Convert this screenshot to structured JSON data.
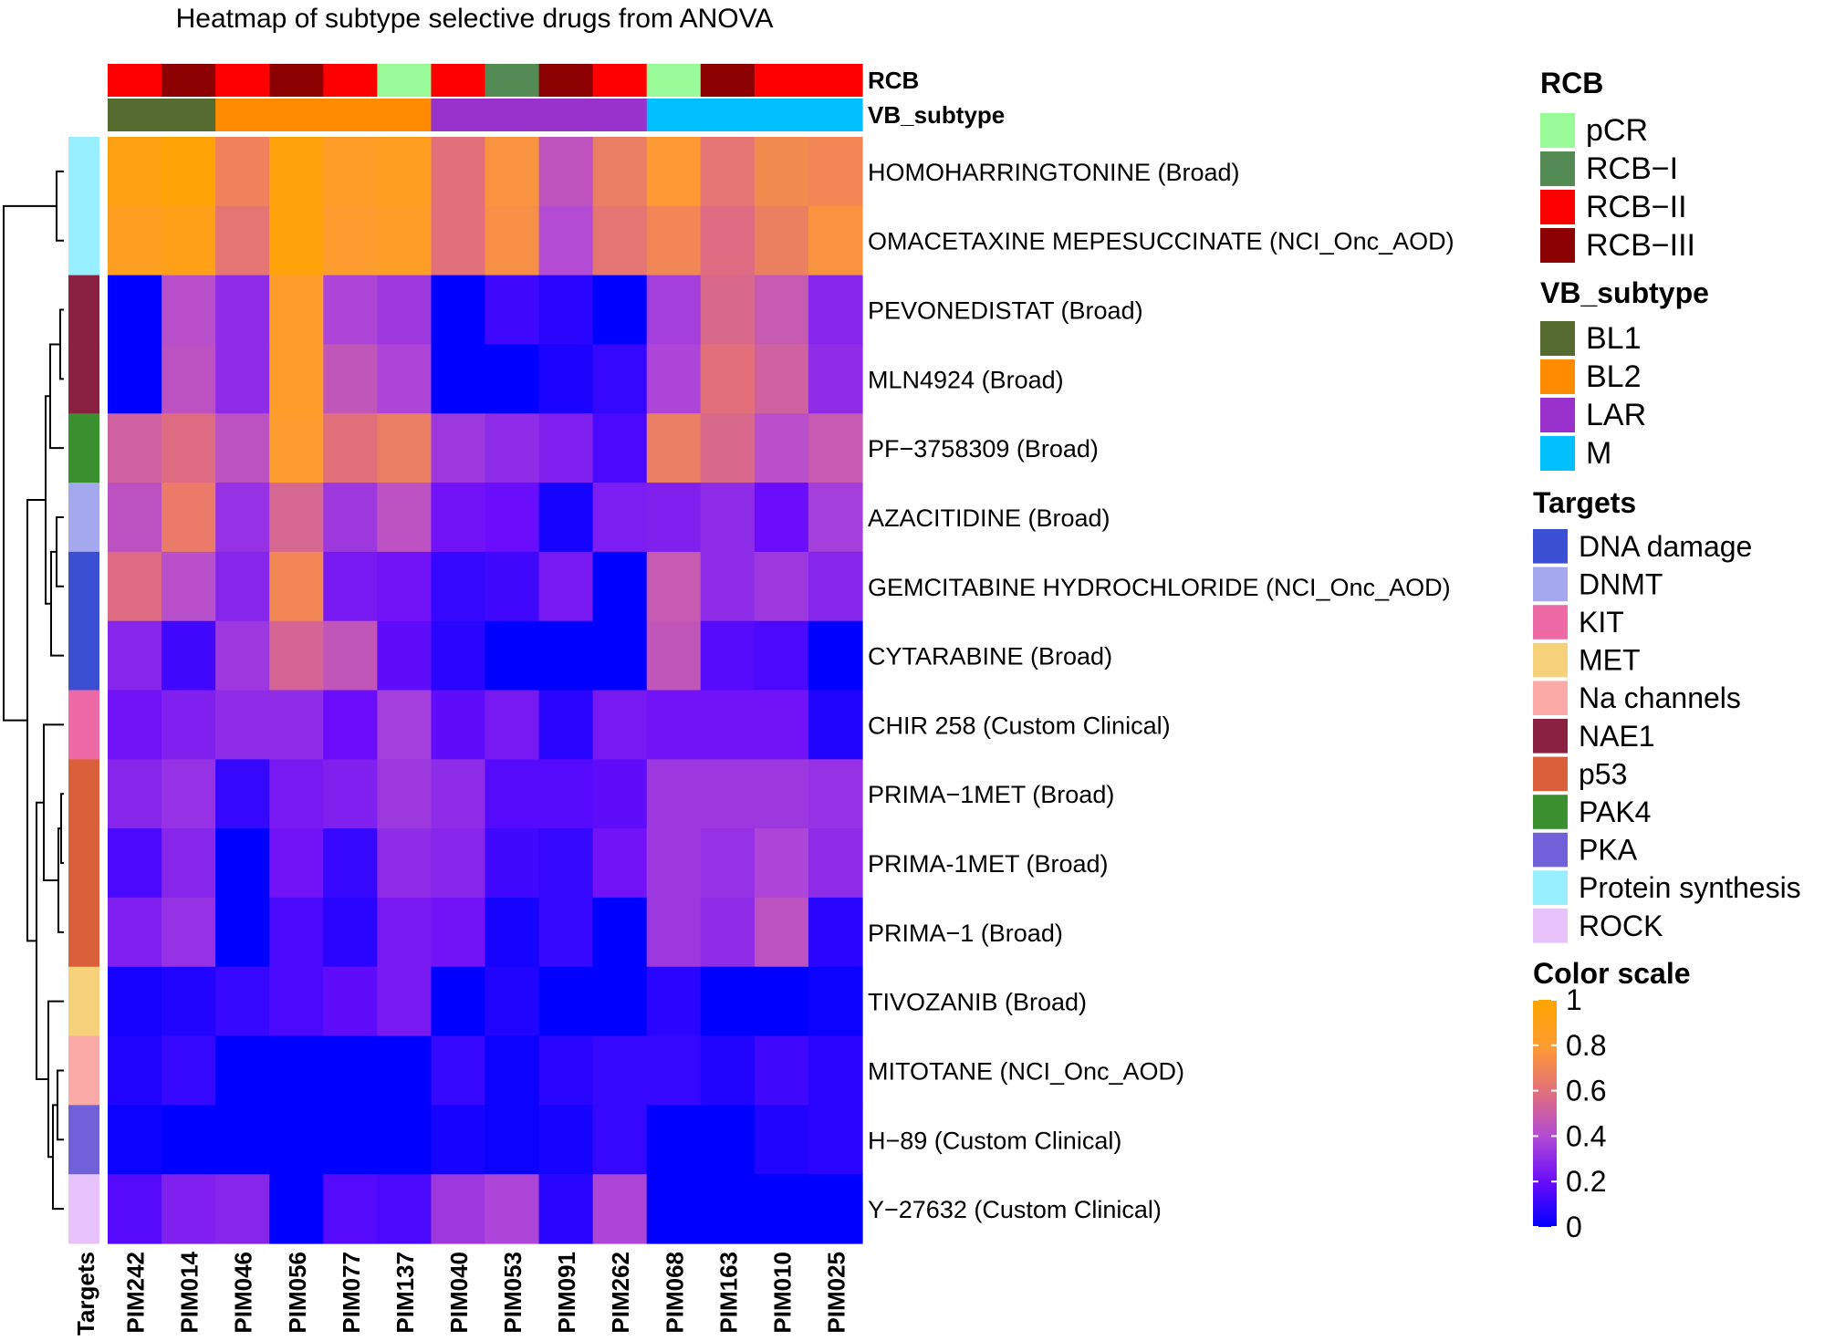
{
  "chart_data": {
    "type": "heatmap",
    "title": "Heatmap of subtype selective drugs from ANOVA",
    "columns": [
      "PIM242",
      "PIM014",
      "PIM046",
      "PIM056",
      "PIM077",
      "PIM137",
      "PIM040",
      "PIM053",
      "PIM091",
      "PIM262",
      "PIM068",
      "PIM163",
      "PIM010",
      "PIM025"
    ],
    "column_annotations": {
      "RCB": [
        "RCB-II",
        "RCB-III",
        "RCB-II",
        "RCB-III",
        "RCB-II",
        "pCR",
        "RCB-II",
        "RCB-I",
        "RCB-III",
        "RCB-II",
        "pCR",
        "RCB-III",
        "RCB-II",
        "RCB-II"
      ],
      "VB_subtype": [
        "BL1",
        "BL1",
        "BL2",
        "BL2",
        "BL2",
        "BL2",
        "LAR",
        "LAR",
        "LAR",
        "LAR",
        "M",
        "M",
        "M",
        "M"
      ]
    },
    "column_annotation_labels": [
      "RCB",
      "VB_subtype"
    ],
    "rows": [
      "HOMOHARRINGTONINE (Broad)",
      "OMACETAXINE MEPESUCCINATE (NCI_Onc_AOD)",
      "PEVONEDISTAT (Broad)",
      "MLN4924 (Broad)",
      "PF−3758309 (Broad)",
      "AZACITIDINE (Broad)",
      "GEMCITABINE HYDROCHLORIDE (NCI_Onc_AOD)",
      "CYTARABINE (Broad)",
      "CHIR 258 (Custom Clinical)",
      "PRIMA−1MET (Broad)",
      "PRIMA-1MET (Broad)",
      "PRIMA−1 (Broad)",
      "TIVOZANIB (Broad)",
      "MITOTANE (NCI_Onc_AOD)",
      "H−89 (Custom Clinical)",
      "Y−27632 (Custom Clinical)"
    ],
    "row_targets": [
      "Protein synthesis",
      "Protein synthesis",
      "NAE1",
      "NAE1",
      "PAK4",
      "DNMT",
      "DNA damage",
      "DNA damage",
      "KIT",
      "p53",
      "p53",
      "p53",
      "MET",
      "Na channels",
      "PKA",
      "ROCK"
    ],
    "row_annotation_label": "Targets",
    "values": [
      [
        0.92,
        0.97,
        0.68,
        0.95,
        0.83,
        0.86,
        0.6,
        0.76,
        0.45,
        0.66,
        0.79,
        0.62,
        0.72,
        0.7
      ],
      [
        0.86,
        0.9,
        0.62,
        0.96,
        0.8,
        0.83,
        0.6,
        0.74,
        0.4,
        0.62,
        0.7,
        0.58,
        0.67,
        0.76
      ],
      [
        0.0,
        0.42,
        0.3,
        0.82,
        0.38,
        0.34,
        0.0,
        0.12,
        0.08,
        0.0,
        0.36,
        0.56,
        0.48,
        0.28
      ],
      [
        0.0,
        0.44,
        0.3,
        0.82,
        0.46,
        0.38,
        0.0,
        0.0,
        0.05,
        0.1,
        0.38,
        0.6,
        0.52,
        0.3
      ],
      [
        0.52,
        0.58,
        0.44,
        0.8,
        0.6,
        0.66,
        0.34,
        0.3,
        0.26,
        0.14,
        0.66,
        0.56,
        0.42,
        0.48
      ],
      [
        0.44,
        0.65,
        0.32,
        0.55,
        0.34,
        0.44,
        0.22,
        0.2,
        0.04,
        0.25,
        0.26,
        0.3,
        0.2,
        0.36
      ],
      [
        0.58,
        0.42,
        0.28,
        0.7,
        0.24,
        0.22,
        0.1,
        0.12,
        0.24,
        0.0,
        0.48,
        0.3,
        0.34,
        0.28
      ],
      [
        0.28,
        0.12,
        0.34,
        0.54,
        0.46,
        0.18,
        0.08,
        0.0,
        0.0,
        0.0,
        0.46,
        0.16,
        0.14,
        0.0
      ],
      [
        0.22,
        0.26,
        0.3,
        0.3,
        0.2,
        0.36,
        0.18,
        0.24,
        0.08,
        0.24,
        0.22,
        0.22,
        0.22,
        0.06
      ],
      [
        0.28,
        0.32,
        0.1,
        0.24,
        0.26,
        0.34,
        0.3,
        0.16,
        0.16,
        0.18,
        0.34,
        0.34,
        0.34,
        0.32
      ],
      [
        0.14,
        0.28,
        0.0,
        0.22,
        0.1,
        0.3,
        0.28,
        0.12,
        0.1,
        0.22,
        0.34,
        0.32,
        0.38,
        0.3
      ],
      [
        0.26,
        0.32,
        0.0,
        0.14,
        0.08,
        0.24,
        0.22,
        0.04,
        0.1,
        0.0,
        0.34,
        0.3,
        0.44,
        0.08
      ],
      [
        0.04,
        0.06,
        0.1,
        0.14,
        0.18,
        0.24,
        0.0,
        0.06,
        0.0,
        0.0,
        0.08,
        0.0,
        0.0,
        0.02
      ],
      [
        0.06,
        0.1,
        0.0,
        0.0,
        0.0,
        0.0,
        0.1,
        0.02,
        0.08,
        0.1,
        0.1,
        0.06,
        0.12,
        0.08
      ],
      [
        0.02,
        0.0,
        0.0,
        0.0,
        0.0,
        0.0,
        0.04,
        0.02,
        0.04,
        0.1,
        0.0,
        0.0,
        0.06,
        0.08
      ],
      [
        0.16,
        0.26,
        0.28,
        0.0,
        0.16,
        0.14,
        0.34,
        0.38,
        0.08,
        0.38,
        0.0,
        0.0,
        0.0,
        0.0
      ]
    ],
    "color_scale": {
      "title": "Color scale",
      "range": [
        0,
        1
      ],
      "ticks": [
        "1",
        "0.8",
        "0.6",
        "0.4",
        "0.2",
        "0"
      ],
      "tick_values": [
        1,
        0.8,
        0.6,
        0.4,
        0.2,
        0
      ],
      "stops": [
        "#0000ff",
        "#6a0dfa",
        "#b34bd4",
        "#e2707a",
        "#fd9d30",
        "#ffa500"
      ]
    },
    "legends": [
      {
        "title": "RCB",
        "entries": [
          {
            "label": "pCR",
            "color": "#98fb98"
          },
          {
            "label": "RCB−I",
            "color": "#548b54"
          },
          {
            "label": "RCB−II",
            "color": "#ff0000"
          },
          {
            "label": "RCB−III",
            "color": "#8b0000"
          }
        ]
      },
      {
        "title": "VB_subtype",
        "entries": [
          {
            "label": "BL1",
            "color": "#556b2f"
          },
          {
            "label": "BL2",
            "color": "#ff8c00"
          },
          {
            "label": "LAR",
            "color": "#9932cc"
          },
          {
            "label": "M",
            "color": "#00bfff"
          }
        ]
      },
      {
        "title": "Targets",
        "entries": [
          {
            "label": "DNA damage",
            "color": "#3a4fd1"
          },
          {
            "label": "DNMT",
            "color": "#a3a8ef"
          },
          {
            "label": "KIT",
            "color": "#ee6aa7"
          },
          {
            "label": "MET",
            "color": "#f5d27a"
          },
          {
            "label": "Na channels",
            "color": "#fbaaa8"
          },
          {
            "label": "NAE1",
            "color": "#8b2140"
          },
          {
            "label": "p53",
            "color": "#d9603b"
          },
          {
            "label": "PAK4",
            "color": "#3a8f2f"
          },
          {
            "label": "PKA",
            "color": "#7161d8"
          },
          {
            "label": "Protein synthesis",
            "color": "#98efff"
          },
          {
            "label": "ROCK",
            "color": "#e8c2fa"
          }
        ]
      }
    ]
  }
}
